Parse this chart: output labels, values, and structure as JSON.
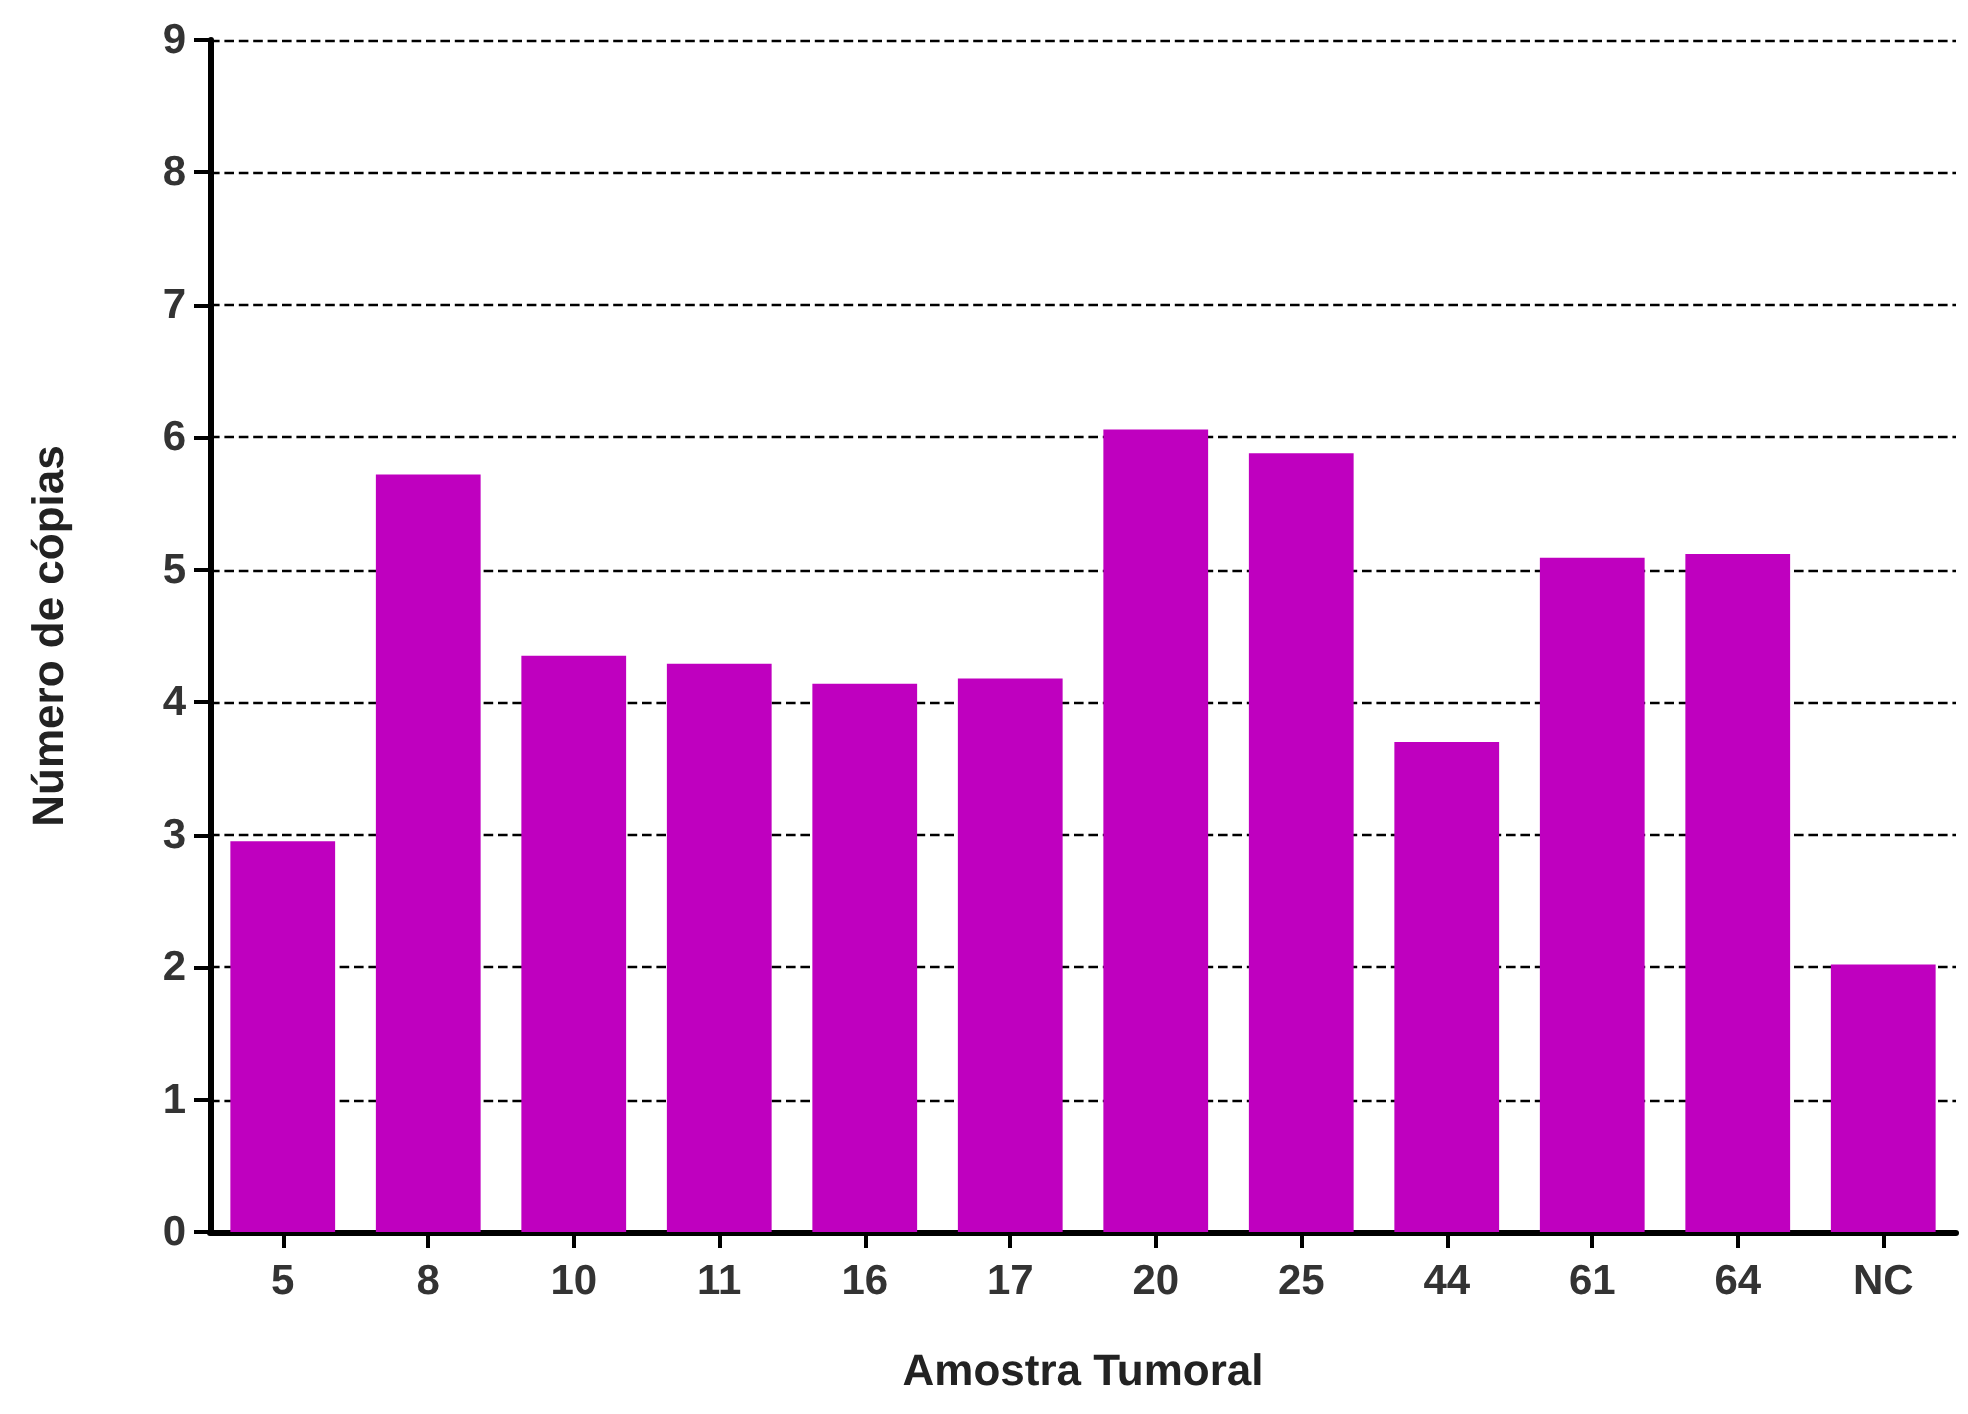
{
  "chart_data": {
    "type": "bar",
    "xlabel": "Amostra Tumoral",
    "ylabel": "Número de cópias",
    "categories": [
      "5",
      "8",
      "10",
      "11",
      "16",
      "17",
      "20",
      "25",
      "44",
      "61",
      "64",
      "NC"
    ],
    "values": [
      2.95,
      5.72,
      4.35,
      4.29,
      4.14,
      4.18,
      6.06,
      5.88,
      3.7,
      5.09,
      5.12,
      2.02
    ],
    "color": "#bf00bf",
    "ylim": [
      0,
      9
    ],
    "yticks": [
      0,
      1,
      2,
      3,
      4,
      5,
      6,
      7,
      8,
      9
    ],
    "grid": "y"
  }
}
